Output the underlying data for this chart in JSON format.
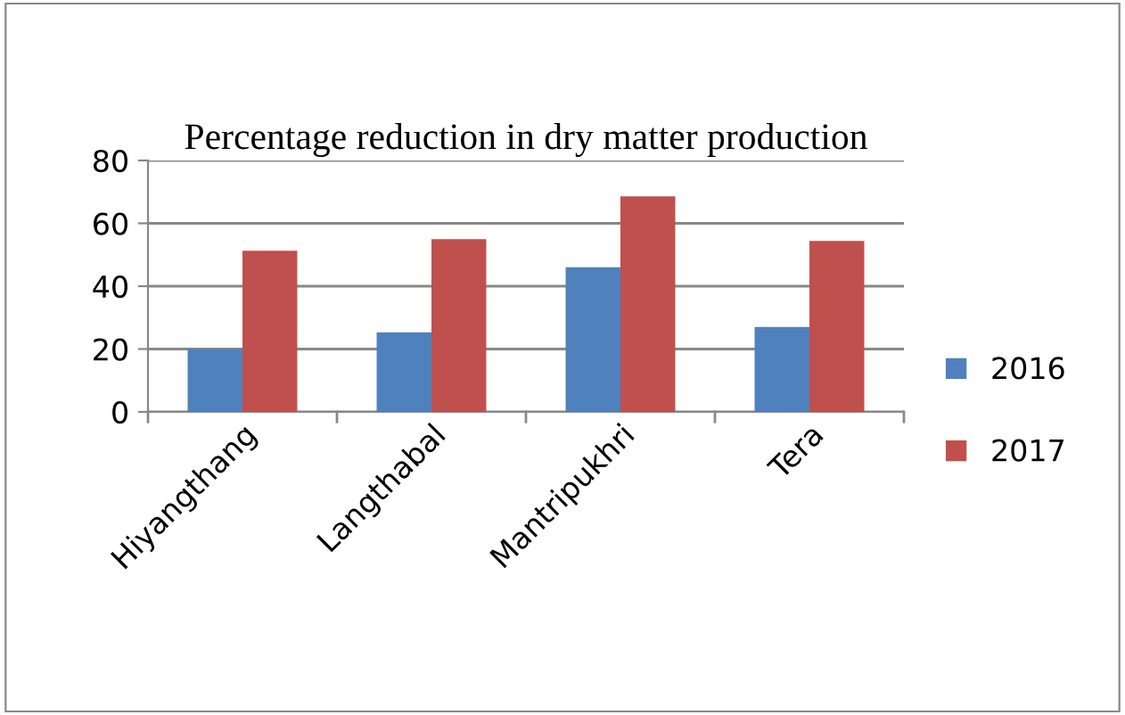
{
  "chart_data": {
    "type": "bar",
    "title": "Percentage reduction in dry matter production",
    "categories": [
      "Hiyangthang",
      "Langthabal",
      "Mantripukhri",
      "Tera"
    ],
    "series": [
      {
        "name": "2016",
        "color": "#4f81bd",
        "values": [
          20,
          25.3,
          46,
          27
        ]
      },
      {
        "name": "2017",
        "color": "#c0504d",
        "values": [
          51.3,
          55,
          68.6,
          54.4
        ]
      }
    ],
    "ylim": [
      0,
      80
    ],
    "yticks": [
      0,
      20,
      40,
      60,
      80
    ],
    "grid": "y",
    "legend": "right"
  }
}
